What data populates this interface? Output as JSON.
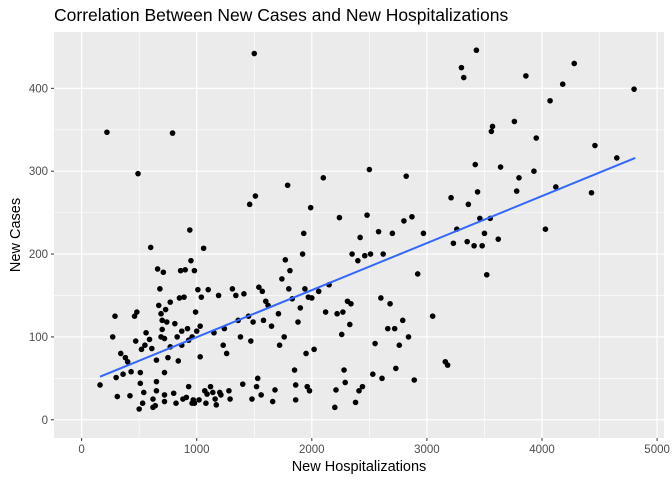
{
  "chart_data": {
    "type": "scatter",
    "title": "Correlation Between New Cases and New Hospitalizations",
    "xlabel": "New Hospitalizations",
    "ylabel": "New Cases",
    "xlim": [
      -240,
      5060
    ],
    "ylim": [
      -22,
      468
    ],
    "x_ticks": [
      0,
      1000,
      2000,
      3000,
      4000,
      5000
    ],
    "y_ticks": [
      0,
      100,
      200,
      300,
      400
    ],
    "grid": true,
    "legend": "none",
    "colors": {
      "panel": "#ebebeb",
      "grid": "#ffffff",
      "points": "#000000",
      "trend": "#3366ff"
    },
    "trend_line": {
      "x": [
        160,
        4810
      ],
      "y": [
        52,
        316
      ]
    },
    "points": [
      [
        160,
        42
      ],
      [
        220,
        347
      ],
      [
        270,
        100
      ],
      [
        290,
        125
      ],
      [
        300,
        51
      ],
      [
        310,
        28
      ],
      [
        340,
        80
      ],
      [
        360,
        55
      ],
      [
        380,
        75
      ],
      [
        400,
        70
      ],
      [
        420,
        29
      ],
      [
        430,
        58
      ],
      [
        460,
        125
      ],
      [
        470,
        95
      ],
      [
        480,
        130
      ],
      [
        490,
        297
      ],
      [
        500,
        13
      ],
      [
        510,
        44
      ],
      [
        510,
        57
      ],
      [
        520,
        85
      ],
      [
        530,
        20
      ],
      [
        540,
        33
      ],
      [
        550,
        90
      ],
      [
        560,
        105
      ],
      [
        590,
        97
      ],
      [
        600,
        208
      ],
      [
        610,
        86
      ],
      [
        620,
        15
      ],
      [
        620,
        25
      ],
      [
        640,
        17
      ],
      [
        650,
        35
      ],
      [
        650,
        46
      ],
      [
        650,
        72
      ],
      [
        660,
        182
      ],
      [
        670,
        138
      ],
      [
        680,
        158
      ],
      [
        690,
        100
      ],
      [
        690,
        128
      ],
      [
        700,
        120
      ],
      [
        700,
        109
      ],
      [
        710,
        178
      ],
      [
        720,
        22
      ],
      [
        720,
        30
      ],
      [
        720,
        57
      ],
      [
        720,
        98
      ],
      [
        730,
        133
      ],
      [
        740,
        118
      ],
      [
        750,
        75
      ],
      [
        770,
        142
      ],
      [
        770,
        88
      ],
      [
        790,
        346
      ],
      [
        800,
        32
      ],
      [
        810,
        116
      ],
      [
        820,
        20
      ],
      [
        830,
        100
      ],
      [
        840,
        71
      ],
      [
        850,
        147
      ],
      [
        860,
        180
      ],
      [
        870,
        107
      ],
      [
        870,
        90
      ],
      [
        880,
        25
      ],
      [
        890,
        148
      ],
      [
        900,
        181
      ],
      [
        910,
        27
      ],
      [
        920,
        110
      ],
      [
        930,
        40
      ],
      [
        930,
        96
      ],
      [
        940,
        229
      ],
      [
        950,
        192
      ],
      [
        960,
        100
      ],
      [
        960,
        20
      ],
      [
        970,
        24
      ],
      [
        980,
        180
      ],
      [
        980,
        20
      ],
      [
        990,
        130
      ],
      [
        1000,
        107
      ],
      [
        1010,
        157
      ],
      [
        1020,
        24
      ],
      [
        1030,
        113
      ],
      [
        1030,
        76
      ],
      [
        1040,
        148
      ],
      [
        1060,
        207
      ],
      [
        1070,
        35
      ],
      [
        1080,
        20
      ],
      [
        1090,
        31
      ],
      [
        1100,
        157
      ],
      [
        1120,
        40
      ],
      [
        1140,
        33
      ],
      [
        1150,
        105
      ],
      [
        1160,
        25
      ],
      [
        1170,
        18
      ],
      [
        1190,
        150
      ],
      [
        1200,
        33
      ],
      [
        1210,
        30
      ],
      [
        1230,
        90
      ],
      [
        1240,
        110
      ],
      [
        1260,
        80
      ],
      [
        1280,
        35
      ],
      [
        1290,
        25
      ],
      [
        1310,
        158
      ],
      [
        1340,
        150
      ],
      [
        1360,
        120
      ],
      [
        1380,
        100
      ],
      [
        1400,
        43
      ],
      [
        1410,
        152
      ],
      [
        1450,
        125
      ],
      [
        1460,
        260
      ],
      [
        1470,
        95
      ],
      [
        1480,
        25
      ],
      [
        1490,
        118
      ],
      [
        1500,
        442
      ],
      [
        1510,
        270
      ],
      [
        1520,
        40
      ],
      [
        1530,
        50
      ],
      [
        1540,
        160
      ],
      [
        1560,
        30
      ],
      [
        1570,
        155
      ],
      [
        1580,
        120
      ],
      [
        1600,
        143
      ],
      [
        1620,
        138
      ],
      [
        1650,
        113
      ],
      [
        1660,
        22
      ],
      [
        1680,
        36
      ],
      [
        1710,
        128
      ],
      [
        1720,
        90
      ],
      [
        1740,
        170
      ],
      [
        1760,
        100
      ],
      [
        1770,
        193
      ],
      [
        1790,
        283
      ],
      [
        1800,
        158
      ],
      [
        1810,
        180
      ],
      [
        1830,
        146
      ],
      [
        1850,
        60
      ],
      [
        1860,
        42
      ],
      [
        1860,
        24
      ],
      [
        1880,
        118
      ],
      [
        1900,
        135
      ],
      [
        1920,
        200
      ],
      [
        1930,
        225
      ],
      [
        1940,
        158
      ],
      [
        1950,
        80
      ],
      [
        1960,
        40
      ],
      [
        1970,
        148
      ],
      [
        1980,
        35
      ],
      [
        1990,
        256
      ],
      [
        2000,
        147
      ],
      [
        2020,
        85
      ],
      [
        2060,
        155
      ],
      [
        2100,
        292
      ],
      [
        2120,
        130
      ],
      [
        2150,
        163
      ],
      [
        2200,
        15
      ],
      [
        2210,
        36
      ],
      [
        2220,
        128
      ],
      [
        2240,
        244
      ],
      [
        2260,
        103
      ],
      [
        2270,
        130
      ],
      [
        2280,
        60
      ],
      [
        2290,
        45
      ],
      [
        2310,
        143
      ],
      [
        2330,
        115
      ],
      [
        2340,
        140
      ],
      [
        2350,
        200
      ],
      [
        2380,
        21
      ],
      [
        2400,
        192
      ],
      [
        2410,
        35
      ],
      [
        2420,
        220
      ],
      [
        2440,
        40
      ],
      [
        2460,
        198
      ],
      [
        2480,
        247
      ],
      [
        2500,
        302
      ],
      [
        2510,
        200
      ],
      [
        2530,
        55
      ],
      [
        2550,
        92
      ],
      [
        2580,
        227
      ],
      [
        2600,
        147
      ],
      [
        2610,
        50
      ],
      [
        2620,
        200
      ],
      [
        2660,
        110
      ],
      [
        2680,
        140
      ],
      [
        2700,
        225
      ],
      [
        2720,
        110
      ],
      [
        2730,
        62
      ],
      [
        2760,
        90
      ],
      [
        2790,
        120
      ],
      [
        2800,
        240
      ],
      [
        2820,
        294
      ],
      [
        2840,
        100
      ],
      [
        2870,
        245
      ],
      [
        2890,
        48
      ],
      [
        2920,
        176
      ],
      [
        2970,
        225
      ],
      [
        3050,
        125
      ],
      [
        3160,
        70
      ],
      [
        3180,
        66
      ],
      [
        3210,
        268
      ],
      [
        3230,
        213
      ],
      [
        3260,
        230
      ],
      [
        3300,
        425
      ],
      [
        3320,
        413
      ],
      [
        3350,
        215
      ],
      [
        3360,
        260
      ],
      [
        3410,
        210
      ],
      [
        3420,
        308
      ],
      [
        3430,
        446
      ],
      [
        3440,
        275
      ],
      [
        3460,
        243
      ],
      [
        3480,
        210
      ],
      [
        3500,
        225
      ],
      [
        3520,
        175
      ],
      [
        3560,
        348
      ],
      [
        3570,
        354
      ],
      [
        3620,
        218
      ],
      [
        3640,
        305
      ],
      [
        3760,
        360
      ],
      [
        3780,
        276
      ],
      [
        3800,
        292
      ],
      [
        3860,
        415
      ],
      [
        3930,
        300
      ],
      [
        3950,
        340
      ],
      [
        4030,
        230
      ],
      [
        4070,
        385
      ],
      [
        4120,
        281
      ],
      [
        4180,
        405
      ],
      [
        4280,
        430
      ],
      [
        4430,
        274
      ],
      [
        4460,
        331
      ],
      [
        4650,
        316
      ],
      [
        4800,
        399
      ],
      [
        3550,
        243
      ]
    ]
  }
}
